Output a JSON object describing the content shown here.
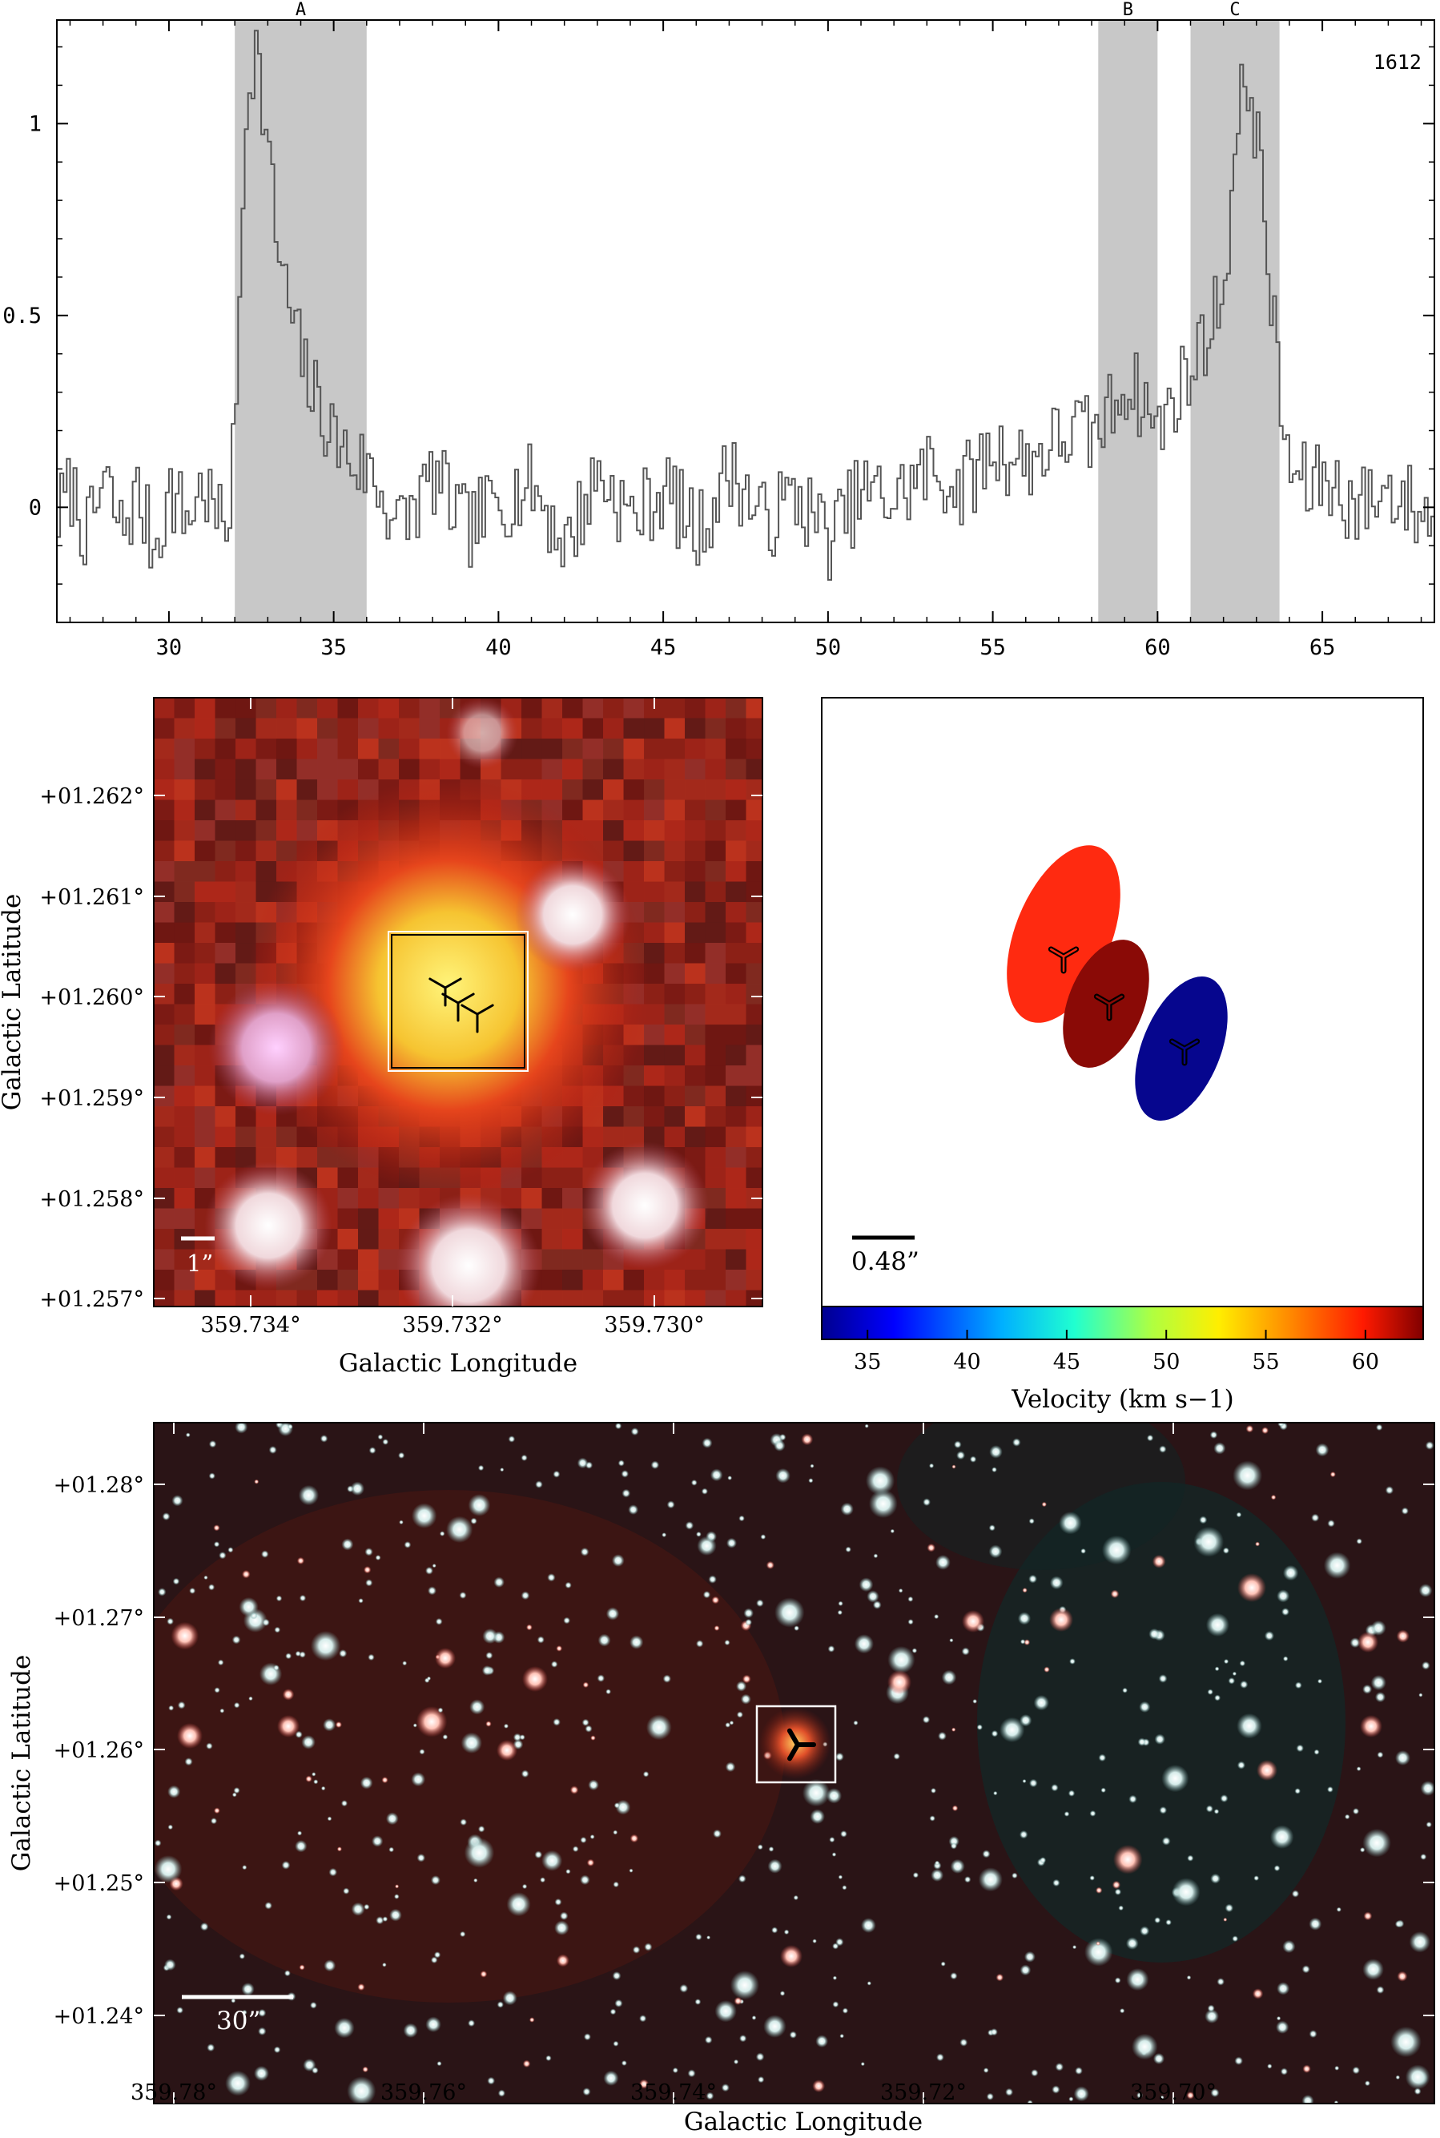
{
  "spectrum": {
    "label": "1612",
    "xticks": [
      "30",
      "35",
      "40",
      "45",
      "50",
      "55",
      "60",
      "65"
    ],
    "yticks": [
      "0",
      "0.5",
      "1"
    ],
    "bands": [
      {
        "label": "A",
        "from": 32.0,
        "to": 36.0
      },
      {
        "label": "B",
        "from": 58.2,
        "to": 60.0
      },
      {
        "label": "C",
        "from": 61.0,
        "to": 63.7
      }
    ]
  },
  "zoom_image": {
    "xlabel": "Galactic Longitude",
    "ylabel": "Galactic Latitude",
    "xticks": [
      "359.734°",
      "359.732°",
      "359.730°"
    ],
    "yticks": [
      "+01.262°",
      "+01.261°",
      "+01.260°",
      "+01.259°",
      "+01.258°",
      "+01.257°"
    ],
    "scalebar": "1”"
  },
  "velocity_panel": {
    "scalebar": "0.48”",
    "colorbar_label": "Velocity (km s−1)",
    "colorbar_ticks": [
      "35",
      "40",
      "45",
      "50",
      "55",
      "60"
    ],
    "components": [
      {
        "velocity": 61,
        "color": "#ff2a10"
      },
      {
        "velocity": 62,
        "color": "#8a0a06"
      },
      {
        "velocity": 33,
        "color": "#06068e"
      }
    ]
  },
  "wide_image": {
    "xlabel": "Galactic Longitude",
    "ylabel": "Galactic Latitude",
    "xticks": [
      "359.78°",
      "359.76°",
      "359.74°",
      "359.72°",
      "359.70°"
    ],
    "yticks": [
      "+01.28°",
      "+01.27°",
      "+01.26°",
      "+01.25°",
      "+01.24°"
    ],
    "scalebar": "30”"
  },
  "chart_data": {
    "type": "line",
    "x": [
      26.6,
      27.0,
      27.5,
      28.0,
      28.5,
      29.0,
      29.5,
      30.0,
      30.5,
      31.0,
      31.5,
      31.8,
      32.0,
      32.2,
      32.4,
      32.6,
      32.8,
      33.0,
      33.2,
      33.4,
      33.6,
      33.8,
      34.0,
      34.3,
      34.6,
      35.0,
      35.5,
      36.0,
      36.5,
      37.0,
      38.0,
      39.0,
      40.0,
      41.0,
      42.0,
      43.0,
      44.0,
      45.0,
      46.0,
      47.0,
      48.0,
      49.0,
      50.0,
      51.0,
      52.0,
      53.0,
      54.0,
      55.0,
      56.0,
      57.0,
      57.5,
      58.0,
      58.5,
      59.0,
      59.5,
      60.0,
      60.5,
      61.0,
      61.4,
      61.8,
      62.0,
      62.2,
      62.4,
      62.6,
      62.8,
      63.0,
      63.2,
      63.4,
      63.6,
      63.8,
      64.0,
      64.5,
      65.0,
      66.0,
      67.0,
      68.0
    ],
    "y": [
      -0.02,
      0.05,
      -0.08,
      0.07,
      -0.06,
      0.03,
      -0.1,
      0.04,
      -0.03,
      0.06,
      -0.05,
      0.0,
      0.25,
      0.85,
      1.15,
      1.2,
      1.05,
      0.9,
      0.72,
      0.6,
      0.52,
      0.45,
      0.38,
      0.3,
      0.25,
      0.18,
      0.12,
      0.1,
      0.02,
      -0.05,
      0.08,
      -0.06,
      0.02,
      0.06,
      -0.1,
      0.09,
      -0.03,
      0.05,
      -0.07,
      0.1,
      -0.04,
      0.03,
      -0.08,
      0.04,
      0.02,
      0.1,
      0.05,
      0.15,
      0.12,
      0.18,
      0.2,
      0.18,
      0.25,
      0.33,
      0.28,
      0.2,
      0.3,
      0.36,
      0.45,
      0.52,
      0.62,
      0.8,
      0.98,
      1.12,
      1.08,
      0.95,
      0.75,
      0.55,
      0.35,
      0.18,
      0.1,
      0.05,
      0.08,
      0.0,
      0.05,
      -0.02
    ],
    "xlim": [
      26.6,
      68.4
    ],
    "ylim": [
      -0.3,
      1.27
    ],
    "grid": false,
    "shaded_regions": [
      "A",
      "B",
      "C"
    ]
  }
}
